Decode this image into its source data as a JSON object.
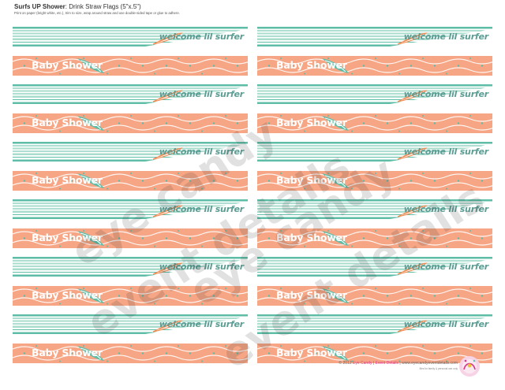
{
  "header": {
    "title_bold": "Surfs UP Shower",
    "title_rest": ": Drink Straw Flags (5\"x.5\")",
    "instructions": "Print on paper (bright white, etc.), trim to size, wrap around straw and use double-sided tape or glue to adhere."
  },
  "flags": {
    "stripe_text": "welcome lil surfer",
    "wave_text": "Baby Shower"
  },
  "watermark": {
    "line1": "eye candy",
    "line2": "event details"
  },
  "footer": {
    "copyright": "© 2012",
    "brand": "Eye Candy",
    "sep1": "|",
    "brand2": "Event Details",
    "sep2": "|",
    "site": "www.eyecandyeventdetails.com",
    "note": "files for family & personal use only"
  },
  "colors": {
    "teal": "#5dbda6",
    "teal_dark": "#4aa38f",
    "teal_light": "#a8dccd",
    "coral": "#f6a685",
    "coral_dark": "#ee9473",
    "board_orange": "#f0884f"
  }
}
